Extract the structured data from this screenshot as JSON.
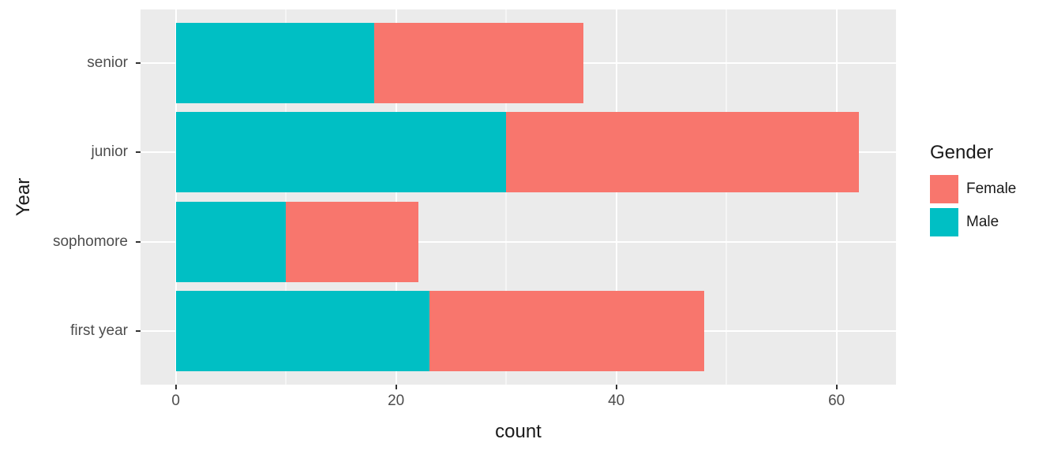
{
  "chart_data": {
    "type": "bar",
    "orientation": "horizontal",
    "stacked": true,
    "title": "",
    "xlabel": "count",
    "ylabel": "Year",
    "categories": [
      "senior",
      "junior",
      "sophomore",
      "first year"
    ],
    "series": [
      {
        "name": "Male",
        "color": "#00BFC4",
        "values": [
          18,
          30,
          10,
          23
        ]
      },
      {
        "name": "Female",
        "color": "#F8766D",
        "values": [
          19,
          32,
          12,
          25
        ]
      }
    ],
    "totals": [
      37,
      62,
      22,
      48
    ],
    "x_ticks": [
      0,
      20,
      40,
      60
    ],
    "x_minor_ticks": [
      10,
      30,
      50
    ],
    "xlim": [
      -3.2,
      65.4
    ],
    "grid": "on",
    "panel_background": "#EBEBEB",
    "grid_color": "#FFFFFF",
    "legend": {
      "title": "Gender",
      "position": "right",
      "entries": [
        {
          "label": "Female",
          "color": "#F8766D"
        },
        {
          "label": "Male",
          "color": "#00BFC4"
        }
      ]
    }
  }
}
